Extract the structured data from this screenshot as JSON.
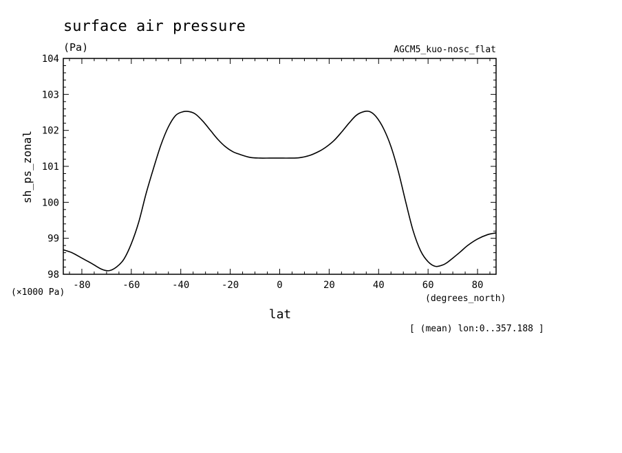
{
  "chart_data": {
    "type": "line",
    "title": "surface air pressure",
    "units_label": "(Pa)",
    "run_label": "AGCM5_kuo-nosc_flat",
    "xlabel": "lat",
    "ylabel": "sh_ps_zonal",
    "x_unit_label": "(degrees_north)",
    "y_scale_label": "(×1000 Pa)",
    "footer": "[ (mean) lon:0..357.188 ]",
    "xlim": [
      -87.5,
      87.5
    ],
    "ylim": [
      98,
      104
    ],
    "x_ticks": [
      -80,
      -60,
      -40,
      -20,
      0,
      20,
      40,
      60,
      80
    ],
    "x_tick_labels": [
      "-80",
      "-60",
      "-40",
      "-20",
      "0",
      "20",
      "40",
      "60",
      "80"
    ],
    "y_ticks": [
      98,
      99,
      100,
      101,
      102,
      103,
      104
    ],
    "y_tick_labels": [
      "98",
      "99",
      "100",
      "101",
      "102",
      "103",
      "104"
    ],
    "grid": false,
    "series": [
      {
        "color": "#000000",
        "x": [
          -87.5,
          -84,
          -80,
          -76,
          -72,
          -69,
          -66,
          -63,
          -60,
          -57,
          -54,
          -51,
          -48,
          -45,
          -42,
          -39,
          -36.5,
          -34,
          -31,
          -28,
          -25,
          -22,
          -19,
          -16,
          -12,
          -8,
          -4,
          0,
          4,
          8,
          12,
          16,
          19,
          22,
          25,
          28,
          31,
          34,
          36.5,
          39,
          42,
          45,
          48,
          51,
          54,
          57,
          60,
          63,
          66,
          68,
          70,
          73,
          76,
          80,
          84,
          87.5
        ],
        "y": [
          98.68,
          98.6,
          98.45,
          98.3,
          98.14,
          98.1,
          98.2,
          98.42,
          98.85,
          99.45,
          100.25,
          100.95,
          101.6,
          102.1,
          102.42,
          102.52,
          102.52,
          102.45,
          102.25,
          102.0,
          101.75,
          101.55,
          101.41,
          101.33,
          101.25,
          101.23,
          101.23,
          101.23,
          101.23,
          101.24,
          101.3,
          101.42,
          101.55,
          101.72,
          101.95,
          102.2,
          102.42,
          102.52,
          102.52,
          102.38,
          102.05,
          101.55,
          100.85,
          100.0,
          99.2,
          98.65,
          98.35,
          98.22,
          98.26,
          98.34,
          98.45,
          98.62,
          98.8,
          98.98,
          99.1,
          99.15
        ]
      }
    ]
  }
}
